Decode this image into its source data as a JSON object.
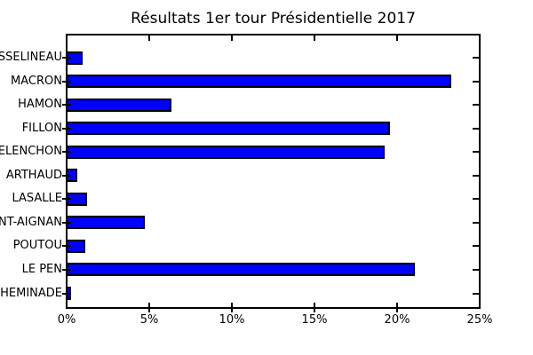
{
  "chart_data": {
    "type": "bar",
    "orientation": "horizontal",
    "title": "Résultats 1er tour Présidentielle 2017",
    "categories": [
      "ASSELINEAU",
      "MACRON",
      "HAMON",
      "FILLON",
      "MELENCHON",
      "ARTHAUD",
      "LASALLE",
      "DUPONT-AIGNAN",
      "POUTOU",
      "LE PEN",
      "CHEMINADE"
    ],
    "values": [
      0.9,
      23.2,
      6.3,
      19.5,
      19.2,
      0.6,
      1.2,
      4.7,
      1.1,
      21.0,
      0.2
    ],
    "value_unit": "%",
    "xlim": [
      0,
      25
    ],
    "x_tick_values": [
      0,
      5,
      10,
      15,
      20,
      25
    ],
    "x_tick_labels": [
      "0%",
      "5%",
      "10%",
      "15%",
      "20%",
      "25%"
    ],
    "grid": "off",
    "legend": "none",
    "bar_color": "#0000ff",
    "bar_edge_color": "#000000",
    "axis_color": "#000000",
    "text_color": "#000000",
    "background_color": "#ffffff"
  }
}
